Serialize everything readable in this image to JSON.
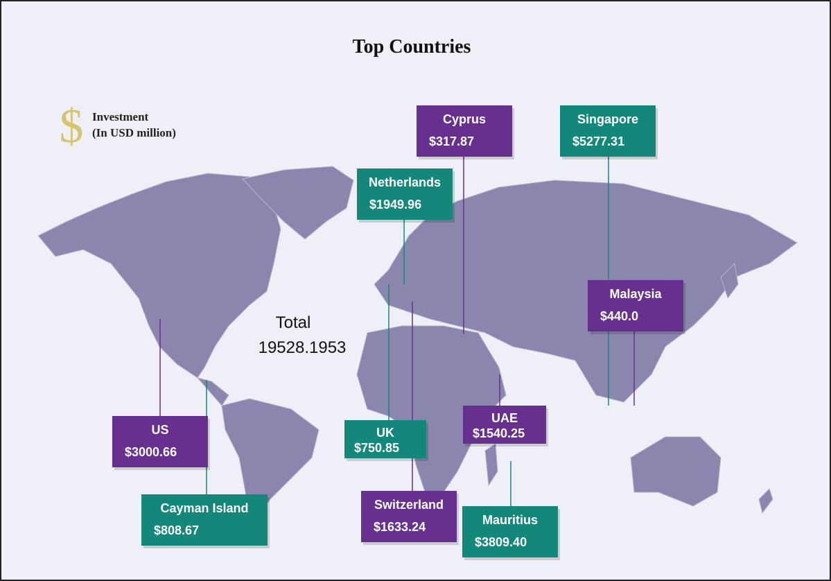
{
  "header": {
    "title": "Top Countries"
  },
  "legend": {
    "symbol": "$",
    "line1": "Investment",
    "line2": "(In USD million)"
  },
  "total": {
    "label": "Total",
    "value": "19528.1953"
  },
  "countries": [
    {
      "name": "Cyprus",
      "value": "$317.87"
    },
    {
      "name": "Singapore",
      "value": "$5277.31"
    },
    {
      "name": "Netherlands",
      "value": "$1949.96"
    },
    {
      "name": "Malaysia",
      "value": "$440.0"
    },
    {
      "name": "US",
      "value": "$3000.66"
    },
    {
      "name": "Cayman Island",
      "value": "$808.67"
    },
    {
      "name": "UK",
      "value": "$750.85"
    },
    {
      "name": "UAE",
      "value": "$1540.25"
    },
    {
      "name": "Switzerland",
      "value": "$1633.24"
    },
    {
      "name": "Mauritius",
      "value": "$3809.40"
    }
  ]
}
